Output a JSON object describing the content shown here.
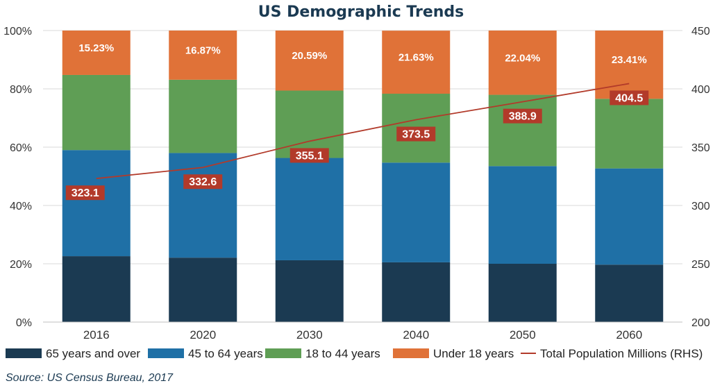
{
  "chart_data": {
    "type": "bar",
    "stacked": true,
    "title": "US Demographic Trends",
    "categories": [
      "2016",
      "2020",
      "2030",
      "2040",
      "2050",
      "2060"
    ],
    "series": [
      {
        "name": "65 years and over",
        "color": "#1b3a52",
        "values": [
          22.6,
          22.1,
          21.2,
          20.5,
          20.0,
          19.7
        ]
      },
      {
        "name": "45 to 64 years",
        "color": "#1f70a6",
        "values": [
          36.4,
          35.9,
          35.1,
          34.2,
          33.5,
          33.0
        ]
      },
      {
        "name": "18 to 44 years",
        "color": "#5f9e55",
        "values": [
          25.77,
          25.13,
          23.11,
          23.63,
          24.46,
          23.89
        ]
      },
      {
        "name": "Under 18 years",
        "color": "#e07238",
        "values": [
          15.23,
          16.87,
          20.59,
          21.63,
          22.04,
          23.41
        ]
      }
    ],
    "segment_labels": [
      "15.23%",
      "16.87%",
      "20.59%",
      "21.63%",
      "22.04%",
      "23.41%"
    ],
    "line_series": {
      "name": "Total Population Millions (RHS)",
      "color": "#b23a2a",
      "values": [
        323.1,
        332.6,
        355.1,
        373.5,
        388.9,
        404.5
      ],
      "labels": [
        "323.1",
        "332.6",
        "355.1",
        "373.5",
        "388.9",
        "404.5"
      ]
    },
    "y_left": {
      "range": [
        0,
        100
      ],
      "ticks": [
        "0%",
        "20%",
        "40%",
        "60%",
        "80%",
        "100%"
      ]
    },
    "y_right": {
      "range": [
        200,
        450
      ],
      "ticks": [
        "200",
        "250",
        "300",
        "350",
        "400",
        "450"
      ]
    },
    "legend_position": "bottom",
    "source": "Source: US Census Bureau, 2017"
  }
}
